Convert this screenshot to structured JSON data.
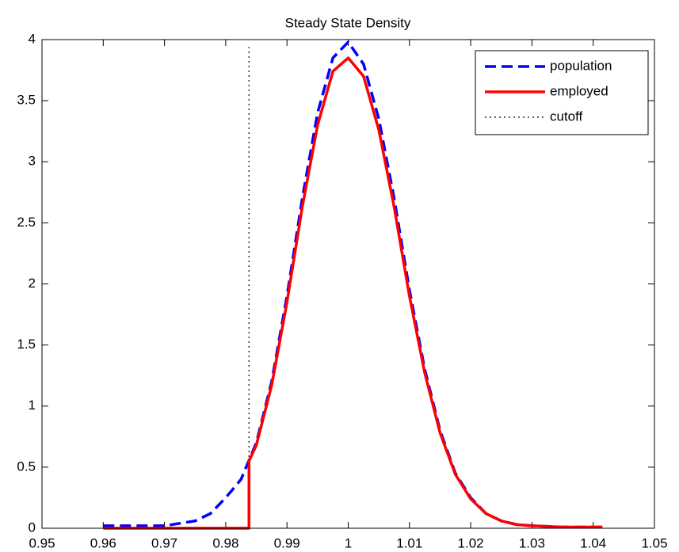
{
  "chart_data": {
    "type": "line",
    "title": "Steady State Density",
    "xlim": [
      0.95,
      1.05
    ],
    "xticks": [
      0.95,
      0.96,
      0.97,
      0.98,
      0.99,
      1,
      1.01,
      1.02,
      1.03,
      1.04,
      1.05
    ],
    "ylim": [
      0,
      4
    ],
    "yticks": [
      0,
      0.5,
      1,
      1.5,
      2,
      2.5,
      3,
      3.5,
      4
    ],
    "grid": false,
    "legend": "upper right",
    "series": [
      {
        "name": "population",
        "color": "#0000ff",
        "style": "dashed",
        "x": [
          0.96,
          0.965,
          0.97,
          0.9725,
          0.975,
          0.9775,
          0.98,
          0.9825,
          0.985,
          0.9875,
          0.99,
          0.9925,
          0.995,
          0.9975,
          1.0,
          1.0025,
          1.005,
          1.0075,
          1.01,
          1.0125,
          1.015,
          1.0175,
          1.02,
          1.0225,
          1.025,
          1.0275,
          1.03,
          1.035,
          1.04,
          1.0415
        ],
        "values": [
          0.02,
          0.02,
          0.02,
          0.04,
          0.06,
          0.12,
          0.25,
          0.4,
          0.7,
          1.2,
          1.9,
          2.7,
          3.4,
          3.85,
          3.98,
          3.8,
          3.35,
          2.7,
          1.95,
          1.3,
          0.8,
          0.45,
          0.25,
          0.12,
          0.06,
          0.03,
          0.02,
          0.01,
          0.01,
          0.01
        ]
      },
      {
        "name": "employed",
        "color": "#ff0000",
        "style": "solid",
        "x": [
          0.96,
          0.97,
          0.98,
          0.9838,
          0.9838,
          0.985,
          0.9875,
          0.99,
          0.9925,
          0.995,
          0.9975,
          1.0,
          1.0025,
          1.005,
          1.0075,
          1.01,
          1.0125,
          1.015,
          1.0175,
          1.02,
          1.0225,
          1.025,
          1.0275,
          1.03,
          1.035,
          1.04,
          1.0415
        ],
        "values": [
          0,
          0,
          0,
          0,
          0.55,
          0.68,
          1.17,
          1.85,
          2.63,
          3.3,
          3.74,
          3.85,
          3.7,
          3.26,
          2.63,
          1.9,
          1.27,
          0.78,
          0.44,
          0.24,
          0.12,
          0.06,
          0.03,
          0.02,
          0.01,
          0.01,
          0.01
        ]
      },
      {
        "name": "cutoff",
        "color": "#000000",
        "style": "dotted",
        "x": [
          0.9838,
          0.9838
        ],
        "values": [
          0,
          3.94
        ]
      }
    ]
  }
}
